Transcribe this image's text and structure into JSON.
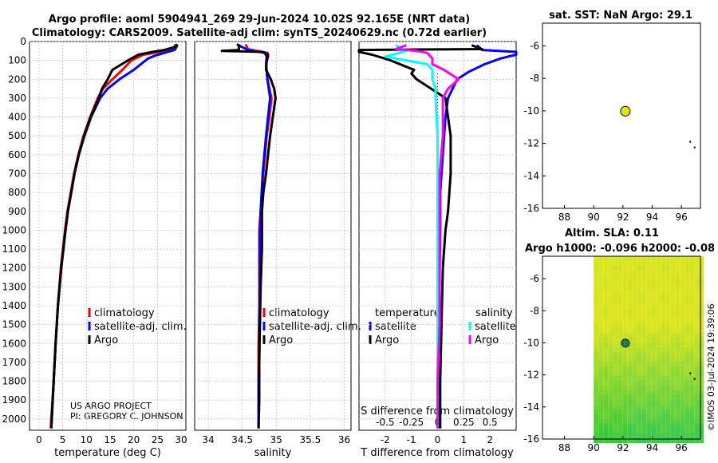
{
  "header": {
    "title_line1": "Argo profile: aoml 5904941_269 29-Jun-2024 10.02S 92.165E (NRT data)",
    "title_line2": "Climatology: CARS2009. Satellite-adj clim: synTS_20240629.nc (0.72d earlier)"
  },
  "colors": {
    "climatology": "#ff0000",
    "satellite": "#0000ff",
    "argo": "#000000",
    "cyan": "#00ffff",
    "magenta": "#ff00ff",
    "marker": "#e8e000"
  },
  "credits": {
    "line1": "US ARGO PROJECT",
    "line2": "PI: GREGORY C. JOHNSON",
    "stamp": "©IMOS 03-Jul-2024 19:39:06"
  },
  "depth_ticks": [
    "0",
    "100",
    "200",
    "300",
    "400",
    "500",
    "600",
    "700",
    "800",
    "900",
    "1000",
    "1100",
    "1200",
    "1300",
    "1400",
    "1500",
    "1600",
    "1700",
    "1800",
    "1900",
    "2000"
  ],
  "legend": {
    "climatology": "climatology",
    "satellite_adj": "satellite-adj. clim.",
    "argo": "Argo"
  },
  "legend3": {
    "temperature": "temperature",
    "salinity": "salinity",
    "satellite": "satellite",
    "argo": "Argo"
  },
  "chart_data": [
    {
      "type": "line",
      "id": "temperature",
      "xlabel": "temperature (deg C)",
      "ylabel": "depth",
      "xlim": [
        -2,
        31
      ],
      "ylim": [
        2060,
        0
      ],
      "xticks": [
        "0",
        "5",
        "10",
        "15",
        "20",
        "25",
        "30"
      ],
      "series": [
        {
          "name": "climatology",
          "depth": [
            15,
            30,
            45,
            55,
            70,
            100,
            150,
            200,
            250,
            300,
            400,
            500,
            600,
            700,
            800,
            900,
            1000,
            1200,
            1400,
            1600,
            1800,
            2000,
            2050
          ],
          "values": [
            28.8,
            28.7,
            28.2,
            25.5,
            22.0,
            19.5,
            17.6,
            15.5,
            13.5,
            12.4,
            10.8,
            9.4,
            8.3,
            7.4,
            6.7,
            6.0,
            5.5,
            4.6,
            4.0,
            3.5,
            3.1,
            2.6,
            2.5
          ]
        },
        {
          "name": "satellite-adj. clim.",
          "depth": [
            15,
            30,
            45,
            60,
            75,
            90,
            150,
            200,
            250,
            300,
            400,
            500,
            600,
            700,
            800,
            900,
            1000,
            1200,
            1400,
            1600,
            1800,
            2000,
            2050
          ],
          "values": [
            29.2,
            29.0,
            28.6,
            26.5,
            24.5,
            23.0,
            20.0,
            17.0,
            14.5,
            12.9,
            11.0,
            9.6,
            8.4,
            7.5,
            6.8,
            6.1,
            5.6,
            4.7,
            4.0,
            3.5,
            3.1,
            2.7,
            2.6
          ]
        },
        {
          "name": "Argo",
          "depth": [
            15,
            30,
            45,
            55,
            70,
            100,
            150,
            200,
            250,
            300,
            400,
            500,
            600,
            700,
            800,
            900,
            1000,
            1200,
            1400,
            1600,
            1800,
            2000,
            2050
          ],
          "values": [
            29.2,
            28.5,
            26.5,
            24.0,
            21.0,
            18.8,
            15.5,
            14.5,
            13.3,
            12.6,
            10.9,
            9.5,
            8.4,
            7.5,
            6.8,
            6.1,
            5.6,
            4.7,
            4.0,
            3.5,
            3.1,
            2.7,
            2.6
          ]
        }
      ]
    },
    {
      "type": "line",
      "id": "salinity",
      "xlabel": "salinity",
      "ylabel": "depth",
      "xlim": [
        33.8,
        36.1
      ],
      "ylim": [
        2060,
        0
      ],
      "xticks": [
        "34",
        "34.5",
        "35",
        "35.5",
        "36"
      ],
      "series": [
        {
          "name": "climatology",
          "depth": [
            15,
            40,
            50,
            60,
            80,
            120,
            200,
            300,
            400,
            500,
            700,
            900,
            1000,
            1100,
            1200,
            1400,
            1600,
            1800,
            2000,
            2050
          ],
          "values": [
            34.55,
            34.58,
            34.72,
            34.87,
            34.88,
            34.85,
            34.87,
            34.93,
            34.9,
            34.86,
            34.81,
            34.77,
            34.75,
            34.75,
            34.75,
            34.75,
            34.74,
            34.74,
            34.74,
            34.74
          ]
        },
        {
          "name": "satellite-adj. clim.",
          "depth": [
            15,
            30,
            45,
            50,
            60,
            80,
            120,
            200,
            300,
            400,
            500,
            700,
            900,
            1000,
            1100,
            1200,
            1400,
            1600,
            1800,
            2000,
            2050
          ],
          "values": [
            34.42,
            34.5,
            34.58,
            34.66,
            34.83,
            34.86,
            34.85,
            34.87,
            34.91,
            34.88,
            34.85,
            34.8,
            34.77,
            34.76,
            34.76,
            34.76,
            34.76,
            34.75,
            34.74,
            34.74,
            34.74
          ]
        },
        {
          "name": "Argo",
          "depth": [
            15,
            45,
            50,
            55,
            70,
            100,
            150,
            200,
            250,
            300,
            350,
            400,
            500,
            600,
            700,
            800,
            900,
            1000,
            1100,
            1200,
            1300,
            1500,
            1700,
            1900,
            2050
          ],
          "values": [
            34.45,
            34.45,
            34.2,
            34.8,
            34.88,
            34.86,
            34.85,
            34.92,
            34.97,
            34.99,
            34.97,
            34.95,
            34.91,
            34.88,
            34.85,
            34.81,
            34.79,
            34.79,
            34.79,
            34.78,
            34.77,
            34.76,
            34.75,
            34.75,
            34.74
          ]
        }
      ]
    },
    {
      "type": "line",
      "id": "difference",
      "xlabel": "T difference from climatology",
      "xlabel_top": "S difference from climatology",
      "xlim": [
        -3,
        3
      ],
      "ylim": [
        2060,
        0
      ],
      "xticks": [
        "-2",
        "-1",
        "0",
        "1",
        "2"
      ],
      "xticks_s": [
        "-0.5",
        "-0.25",
        "0",
        "0.25",
        "0.5"
      ],
      "series": [
        {
          "name": "temperature satellite",
          "depth": [
            20,
            45,
            55,
            70,
            90,
            120,
            160,
            200,
            300,
            400,
            600,
            800,
            1000,
            1500,
            2000,
            2050
          ],
          "values": [
            1.5,
            1.7,
            3.0,
            3.0,
            2.4,
            1.8,
            1.2,
            0.75,
            0.4,
            0.3,
            0.2,
            0.1,
            0.1,
            0.05,
            0.05,
            0.05
          ]
        },
        {
          "name": "temperature Argo",
          "depth": [
            20,
            40,
            45,
            55,
            70,
            100,
            150,
            170,
            200,
            300,
            400,
            500,
            700,
            900,
            1000,
            1200,
            1500,
            1800,
            2000,
            2050
          ],
          "values": [
            1.3,
            1.7,
            -3.0,
            -3.0,
            -2.5,
            -1.8,
            -0.9,
            -1.0,
            -0.8,
            0.3,
            0.4,
            0.5,
            0.5,
            0.4,
            0.3,
            0.2,
            0.15,
            0.1,
            0.1,
            0.1
          ]
        },
        {
          "name": "salinity satellite",
          "depth": [
            20,
            50,
            80,
            120,
            150,
            200,
            250,
            300,
            500,
            700,
            900,
            1100,
            1400,
            1800,
            2050
          ],
          "values": [
            -0.4,
            -0.3,
            -0.5,
            -0.1,
            -0.05,
            -0.05,
            -0.02,
            -0.02,
            0.0,
            0.0,
            0.0,
            0.0,
            0.0,
            0.0,
            0.0
          ]
        },
        {
          "name": "salinity Argo",
          "depth": [
            20,
            40,
            50,
            60,
            90,
            120,
            150,
            200,
            250,
            300,
            350,
            400,
            500,
            700,
            900,
            1000,
            1200,
            1500,
            1800,
            2050
          ],
          "values": [
            -0.3,
            -0.4,
            -0.2,
            -0.1,
            -0.05,
            -0.05,
            0.06,
            0.2,
            0.1,
            0.05,
            0.05,
            0.05,
            0.05,
            0.02,
            0.02,
            0.02,
            0.02,
            0.02,
            0.0,
            0.0
          ]
        }
      ]
    },
    {
      "type": "scatter",
      "id": "sst_map",
      "title": "sat. SST: NaN Argo: 29.1",
      "xlim": [
        86.5,
        97.3
      ],
      "ylim": [
        -16,
        -4.6
      ],
      "xticks": [
        "88",
        "90",
        "92",
        "94",
        "96"
      ],
      "yticks": [
        "-6",
        "-8",
        "-10",
        "-12",
        "-14",
        "-16"
      ],
      "points": [
        {
          "x": 92.165,
          "y": -10.02
        }
      ],
      "dots": [
        {
          "x": 96.6,
          "y": -11.9
        },
        {
          "x": 96.9,
          "y": -12.25
        }
      ]
    },
    {
      "type": "heatmap",
      "id": "sla_map",
      "title_line1": "Altim. SLA: 0.11",
      "title_line2": "Argo h1000: -0.096 h2000: -0.08",
      "xlim": [
        86.5,
        97.3
      ],
      "ylim": [
        -16,
        -4.6
      ],
      "data_xlim": [
        90,
        97.3
      ],
      "xticks": [
        "88",
        "90",
        "92",
        "94",
        "96"
      ],
      "yticks": [
        "-6",
        "-8",
        "-10",
        "-12",
        "-14",
        "-16"
      ],
      "points": [
        {
          "x": 92.165,
          "y": -10.02
        }
      ],
      "dots": [
        {
          "x": 96.6,
          "y": -11.9
        },
        {
          "x": 96.9,
          "y": -12.25
        }
      ]
    }
  ]
}
